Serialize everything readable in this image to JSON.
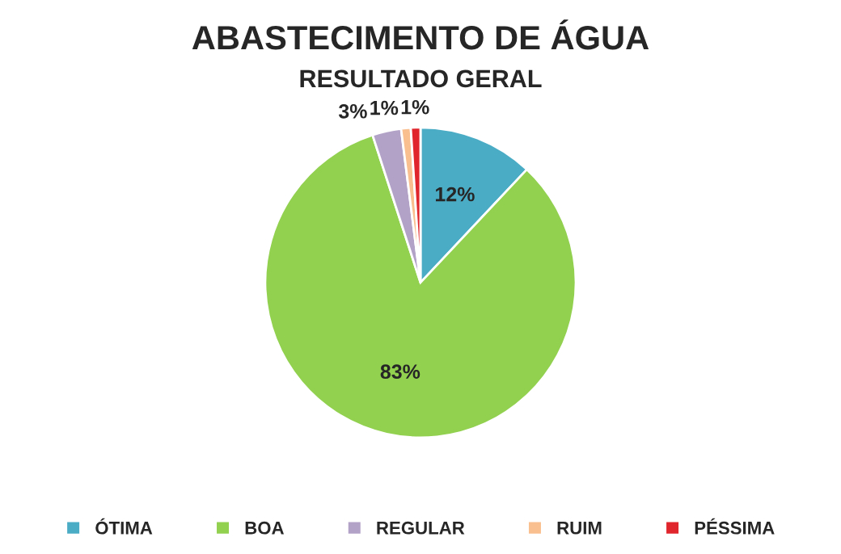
{
  "chart_data": {
    "type": "pie",
    "title": "ABASTECIMENTO DE ÁGUA",
    "subtitle": "RESULTADO GERAL",
    "categories": [
      "ÓTIMA",
      "BOA",
      "REGULAR",
      "RUIM",
      "PÉSSIMA"
    ],
    "values": [
      12,
      83,
      3,
      1,
      1
    ],
    "colors": [
      "#4bacc6",
      "#92d050",
      "#b3a2c7",
      "#fabf8f",
      "#e0262c"
    ],
    "value_labels": [
      "12%",
      "83%",
      "3%",
      "1%",
      "1%"
    ],
    "legend": "bottom"
  }
}
